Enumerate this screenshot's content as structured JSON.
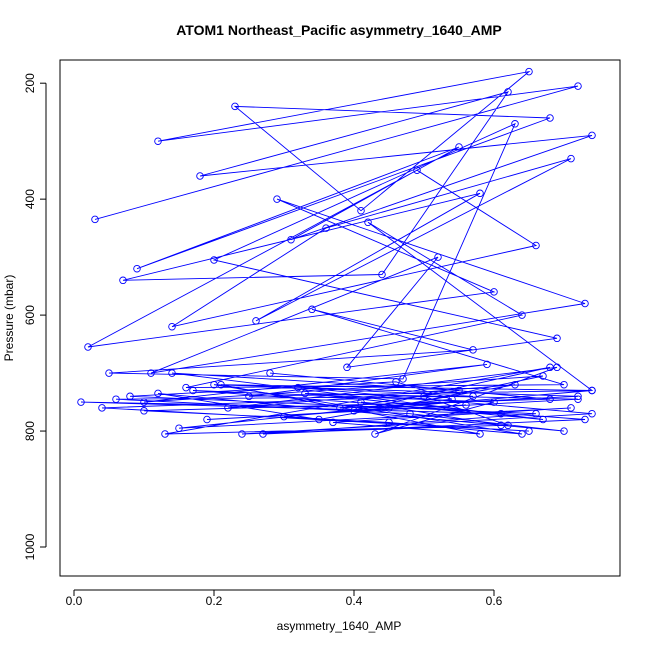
{
  "chart_data": {
    "type": "scatter",
    "title": "ATOM1 Northeast_Pacific asymmetry_1640_AMP",
    "xlabel": "asymmetry_1640_AMP",
    "ylabel": "Pressure (mbar)",
    "xlim": [
      -0.02,
      0.78
    ],
    "ylim": [
      1050,
      160
    ],
    "y_reversed": true,
    "x_ticks": [
      "0.0",
      "0.2",
      "0.4",
      "0.6"
    ],
    "x_tick_values": [
      0.0,
      0.2,
      0.4,
      0.6
    ],
    "y_ticks": [
      "200",
      "400",
      "600",
      "800",
      "1000"
    ],
    "y_tick_values": [
      200,
      400,
      600,
      800,
      1000
    ],
    "grid": false,
    "series": [
      {
        "color": "#0000ff",
        "marker": "open-circle",
        "connected": true,
        "x": [
          0.03,
          0.72,
          0.12,
          0.65,
          0.41,
          0.23,
          0.68,
          0.09,
          0.55,
          0.31,
          0.74,
          0.18,
          0.62,
          0.44,
          0.07,
          0.58,
          0.26,
          0.71,
          0.36,
          0.14,
          0.66,
          0.49,
          0.02,
          0.6,
          0.29,
          0.73,
          0.11,
          0.52,
          0.39,
          0.69,
          0.2,
          0.63,
          0.47,
          0.05,
          0.57,
          0.34,
          0.7,
          0.16,
          0.64,
          0.42,
          0.74,
          0.25,
          0.59,
          0.1,
          0.67,
          0.45,
          0.01,
          0.61,
          0.33,
          0.72,
          0.19,
          0.56,
          0.4,
          0.68,
          0.13,
          0.62,
          0.5,
          0.04,
          0.65,
          0.3,
          0.74,
          0.21,
          0.58,
          0.37,
          0.71,
          0.15,
          0.54,
          0.46,
          0.08,
          0.66,
          0.27,
          0.73,
          0.17,
          0.6,
          0.43,
          0.69,
          0.22,
          0.63,
          0.35,
          0.12,
          0.7,
          0.48,
          0.06,
          0.57,
          0.32,
          0.74,
          0.24,
          0.61,
          0.41,
          0.67,
          0.14,
          0.55,
          0.38,
          0.72,
          0.2,
          0.64,
          0.45,
          0.1,
          0.68,
          0.28
        ],
        "y": [
          435,
          205,
          300,
          180,
          420,
          240,
          260,
          520,
          310,
          470,
          290,
          360,
          215,
          530,
          540,
          390,
          610,
          330,
          450,
          620,
          480,
          350,
          655,
          560,
          400,
          580,
          700,
          500,
          690,
          640,
          505,
          270,
          710,
          700,
          660,
          590,
          720,
          725,
          600,
          440,
          730,
          740,
          685,
          750,
          705,
          760,
          750,
          770,
          735,
          745,
          780,
          755,
          765,
          690,
          805,
          790,
          740,
          760,
          800,
          775,
          730,
          720,
          805,
          785,
          760,
          795,
          745,
          715,
          740,
          770,
          805,
          780,
          730,
          750,
          805,
          690,
          760,
          720,
          780,
          735,
          800,
          770,
          745,
          740,
          725,
          770,
          805,
          790,
          750,
          780,
          700,
          730,
          760,
          740,
          720,
          805,
          785,
          765,
          745,
          700
        ]
      }
    ]
  }
}
